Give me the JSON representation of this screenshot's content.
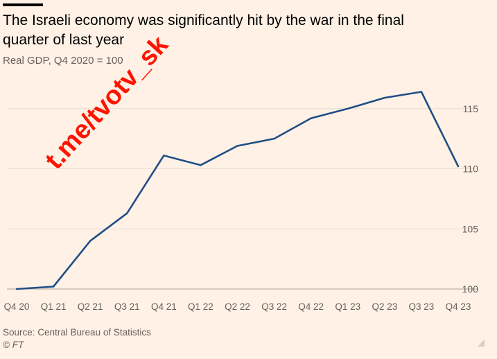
{
  "title": "The Israeli economy was significantly hit by the war in the final quarter of last year",
  "subtitle": "Real GDP, Q4 2020 = 100",
  "source": "Source: Central Bureau of Statistics",
  "credit": "© FT",
  "watermark": "t.me/tvotv_sk",
  "colors": {
    "background": "#fff1e5",
    "line": "#1f4e86",
    "grid": "#e9ddd2",
    "watermark": "#ff1400"
  },
  "chart_data": {
    "type": "line",
    "title": "The Israeli economy was significantly hit by the war in the final quarter of last year",
    "subtitle": "Real GDP, Q4 2020 = 100",
    "xlabel": "",
    "ylabel": "",
    "categories": [
      "Q4 20",
      "Q1 21",
      "Q2 21",
      "Q3 21",
      "Q4 21",
      "Q1 22",
      "Q2 22",
      "Q3 22",
      "Q4 22",
      "Q1 23",
      "Q2 23",
      "Q3 23",
      "Q4 23"
    ],
    "series": [
      {
        "values": [
          100.0,
          100.2,
          104.0,
          106.3,
          111.1,
          110.3,
          111.9,
          112.5,
          114.2,
          115.0,
          115.9,
          116.4,
          110.2
        ]
      }
    ],
    "yticks": [
      100,
      105,
      110,
      115
    ],
    "ylim": [
      100,
      116.4
    ],
    "y_axis_position": "right",
    "grid": true,
    "legend": "none"
  }
}
